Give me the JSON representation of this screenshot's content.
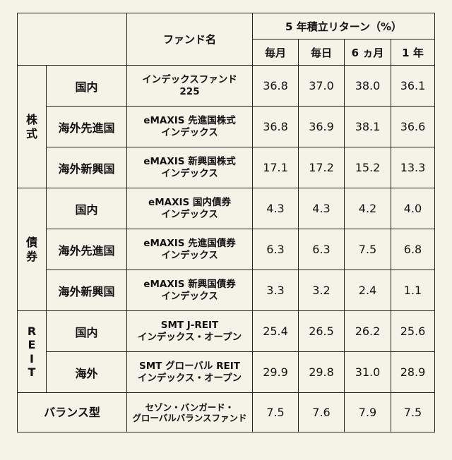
{
  "header": {
    "fund_name": "ファンド名",
    "return_group": "5 年積立リターン（%）",
    "periods": [
      "毎月",
      "毎日",
      "6 ヵ月",
      "1 年"
    ]
  },
  "categories": [
    {
      "name_chars": [
        "株",
        "式"
      ],
      "rows": [
        {
          "sub": "国内",
          "fund": [
            "インデックスファンド",
            "225"
          ],
          "values": [
            "36.8",
            "37.0",
            "38.0",
            "36.1"
          ]
        },
        {
          "sub": "海外先進国",
          "fund": [
            "eMAXIS 先進国株式",
            "インデックス"
          ],
          "values": [
            "36.8",
            "36.9",
            "38.1",
            "36.6"
          ]
        },
        {
          "sub": "海外新興国",
          "fund": [
            "eMAXIS 新興国株式",
            "インデックス"
          ],
          "values": [
            "17.1",
            "17.2",
            "15.2",
            "13.3"
          ]
        }
      ]
    },
    {
      "name_chars": [
        "債",
        "券"
      ],
      "rows": [
        {
          "sub": "国内",
          "fund": [
            "eMAXIS 国内債券",
            "インデックス"
          ],
          "values": [
            "4.3",
            "4.3",
            "4.2",
            "4.0"
          ]
        },
        {
          "sub": "海外先進国",
          "fund": [
            "eMAXIS 先進国債券",
            "インデックス"
          ],
          "values": [
            "6.3",
            "6.3",
            "7.5",
            "6.8"
          ]
        },
        {
          "sub": "海外新興国",
          "fund": [
            "eMAXIS 新興国債券",
            "インデックス"
          ],
          "values": [
            "3.3",
            "3.2",
            "2.4",
            "1.1"
          ]
        }
      ]
    },
    {
      "name_chars": [
        "R",
        "E",
        "I",
        "T"
      ],
      "rows": [
        {
          "sub": "国内",
          "fund": [
            "SMT J-REIT",
            "インデックス・オープン"
          ],
          "values": [
            "25.4",
            "26.5",
            "26.2",
            "25.6"
          ]
        },
        {
          "sub": "海外",
          "fund": [
            "SMT グローバル REIT",
            "インデックス・オープン"
          ],
          "values": [
            "29.9",
            "29.8",
            "31.0",
            "28.9"
          ]
        }
      ]
    }
  ],
  "balance": {
    "name": "バランス型",
    "fund": [
      "セゾン・バンガード・",
      "グローバルバランスファンド"
    ],
    "values": [
      "7.5",
      "7.6",
      "7.9",
      "7.5"
    ]
  }
}
